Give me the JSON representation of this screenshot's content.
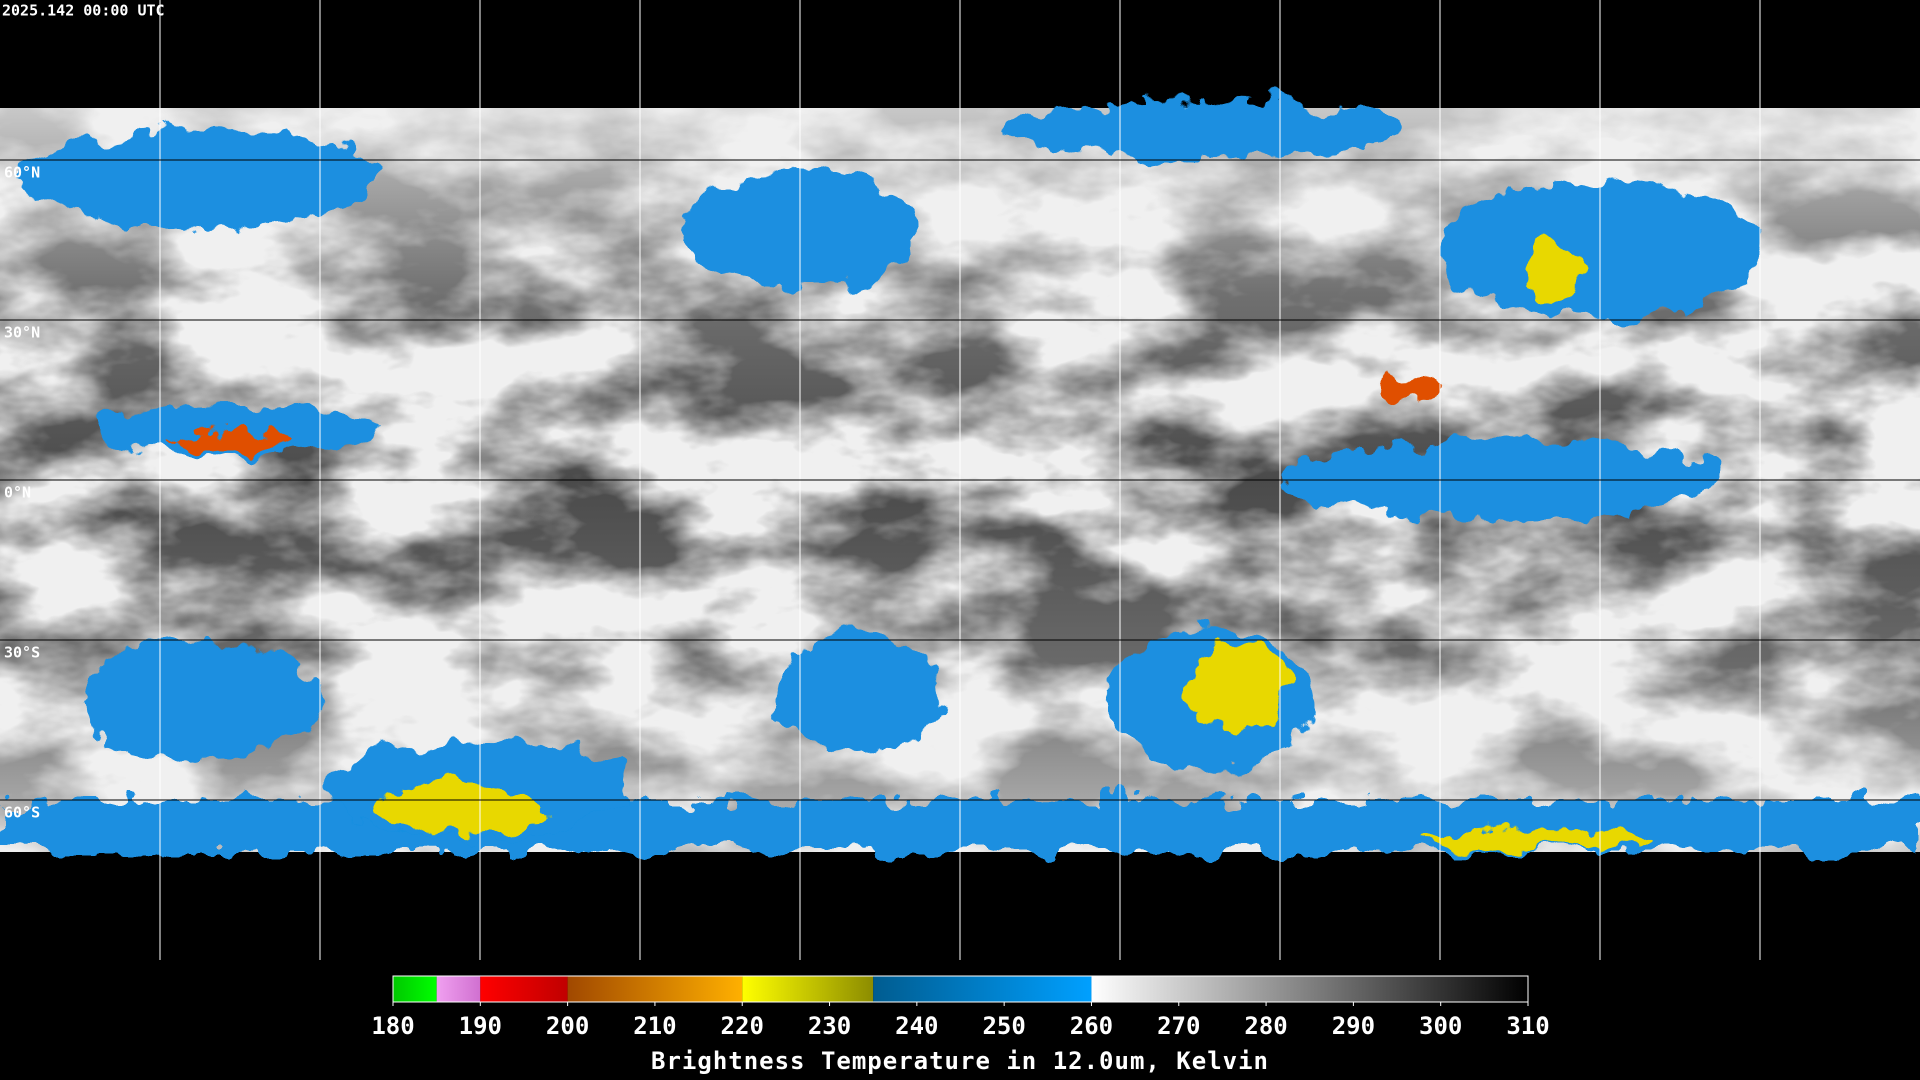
{
  "header": {
    "timestamp": "2025.142 00:00 UTC"
  },
  "map": {
    "lat_labels": [
      "60°N",
      "30°N",
      "0°N",
      "30°S",
      "60°S"
    ]
  },
  "colorbar": {
    "title": "Brightness Temperature in 12.0um, Kelvin",
    "range": [
      180,
      310
    ],
    "ticks": [
      180,
      190,
      200,
      210,
      220,
      230,
      240,
      250,
      260,
      270,
      280,
      290,
      300,
      310
    ],
    "segments": [
      {
        "from": 180,
        "to": 185,
        "colors": [
          "#00c800",
          "#00ff00"
        ]
      },
      {
        "from": 185,
        "to": 190,
        "colors": [
          "#f0a0f0",
          "#d070d0"
        ]
      },
      {
        "from": 190,
        "to": 200,
        "colors": [
          "#ff0000",
          "#c00000"
        ]
      },
      {
        "from": 200,
        "to": 220,
        "colors": [
          "#a04800",
          "#ffb000"
        ]
      },
      {
        "from": 220,
        "to": 235,
        "colors": [
          "#ffff00",
          "#8c8c00"
        ]
      },
      {
        "from": 235,
        "to": 260,
        "colors": [
          "#005c90",
          "#00a0ff"
        ]
      },
      {
        "from": 260,
        "to": 310,
        "colors": [
          "#ffffff",
          "#000000"
        ]
      }
    ]
  }
}
